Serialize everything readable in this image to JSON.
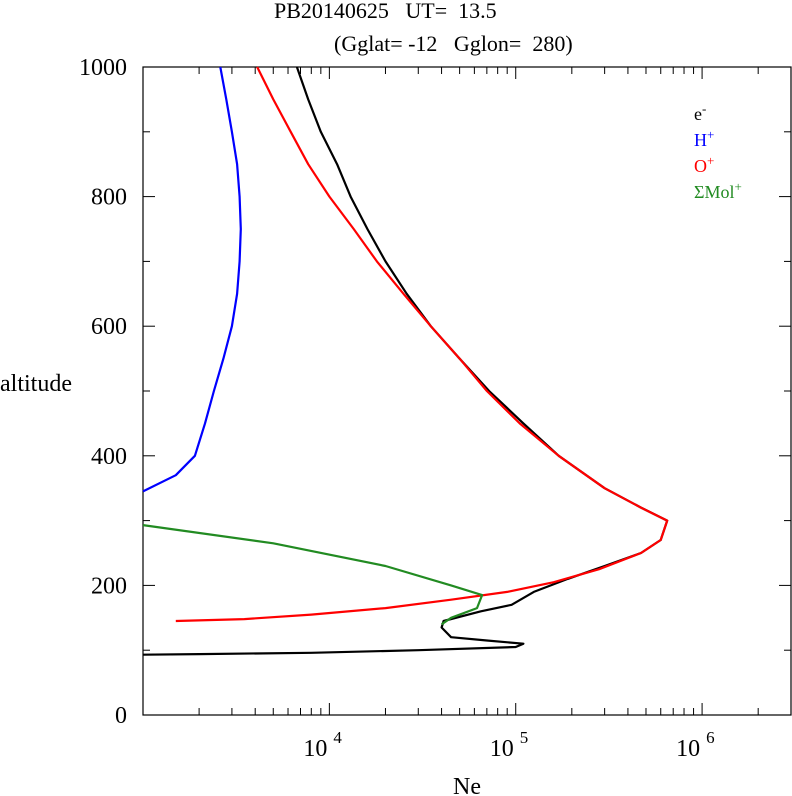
{
  "title_line1": "PB20140625   UT=  13.5",
  "title_line2": "(Gglat= -12   Gglon=  280)",
  "chart_data": {
    "type": "line",
    "xlabel": "Ne",
    "ylabel": "altitude",
    "xscale": "log",
    "xlim": [
      1000,
      3000000
    ],
    "ylim": [
      0,
      1000
    ],
    "x_ticks": [
      {
        "value": 10000,
        "base": "10",
        "exp": "4"
      },
      {
        "value": 100000,
        "base": "10",
        "exp": "5"
      },
      {
        "value": 1000000,
        "base": "10",
        "exp": "6"
      }
    ],
    "y_ticks": [
      "0",
      "200",
      "400",
      "600",
      "800",
      "1000"
    ],
    "legend_position": "top-right",
    "series": [
      {
        "name": "e",
        "sup": "-",
        "color": "#000000",
        "points": [
          [
            6700,
            1000
          ],
          [
            7700,
            950
          ],
          [
            9000,
            900
          ],
          [
            11000,
            850
          ],
          [
            13000,
            800
          ],
          [
            16000,
            750
          ],
          [
            20000,
            700
          ],
          [
            26000,
            650
          ],
          [
            35000,
            600
          ],
          [
            50000,
            550
          ],
          [
            72000,
            500
          ],
          [
            110000,
            450
          ],
          [
            170000,
            400
          ],
          [
            300000,
            350
          ],
          [
            470000,
            320
          ],
          [
            650000,
            300
          ],
          [
            600000,
            270
          ],
          [
            470000,
            250
          ],
          [
            300000,
            230
          ],
          [
            190000,
            210
          ],
          [
            125000,
            190
          ],
          [
            95000,
            170
          ],
          [
            65000,
            160
          ],
          [
            41000,
            145
          ],
          [
            40000,
            135
          ],
          [
            45000,
            120
          ],
          [
            70000,
            115
          ],
          [
            110000,
            110
          ],
          [
            100000,
            105
          ],
          [
            30000,
            100
          ],
          [
            8000,
            96
          ],
          [
            2000,
            94
          ],
          [
            1000,
            93
          ]
        ]
      },
      {
        "name": "H",
        "sup": "+",
        "color": "#0000ff",
        "points": [
          [
            2600,
            1000
          ],
          [
            2800,
            950
          ],
          [
            3000,
            900
          ],
          [
            3200,
            850
          ],
          [
            3300,
            800
          ],
          [
            3350,
            750
          ],
          [
            3300,
            700
          ],
          [
            3200,
            650
          ],
          [
            3000,
            600
          ],
          [
            2700,
            550
          ],
          [
            2400,
            500
          ],
          [
            2150,
            450
          ],
          [
            1900,
            400
          ],
          [
            1500,
            370
          ],
          [
            1000,
            345
          ]
        ]
      },
      {
        "name": "O",
        "sup": "+",
        "color": "#ff0000",
        "points": [
          [
            4100,
            1000
          ],
          [
            5000,
            950
          ],
          [
            6200,
            900
          ],
          [
            7700,
            850
          ],
          [
            10000,
            800
          ],
          [
            13500,
            750
          ],
          [
            18000,
            700
          ],
          [
            25000,
            650
          ],
          [
            35000,
            600
          ],
          [
            50000,
            550
          ],
          [
            70000,
            500
          ],
          [
            105000,
            450
          ],
          [
            170000,
            400
          ],
          [
            300000,
            350
          ],
          [
            470000,
            320
          ],
          [
            650000,
            300
          ],
          [
            600000,
            270
          ],
          [
            470000,
            250
          ],
          [
            280000,
            225
          ],
          [
            160000,
            205
          ],
          [
            90000,
            190
          ],
          [
            45000,
            178
          ],
          [
            20000,
            165
          ],
          [
            8000,
            155
          ],
          [
            3500,
            148
          ],
          [
            1500,
            145
          ]
        ]
      },
      {
        "name": "ΣMol",
        "sup": "+",
        "color": "#228b22",
        "points": [
          [
            1000,
            293
          ],
          [
            5000,
            265
          ],
          [
            20000,
            230
          ],
          [
            45000,
            200
          ],
          [
            66000,
            185
          ],
          [
            62000,
            165
          ],
          [
            45000,
            150
          ],
          [
            40000,
            140
          ]
        ]
      }
    ]
  }
}
